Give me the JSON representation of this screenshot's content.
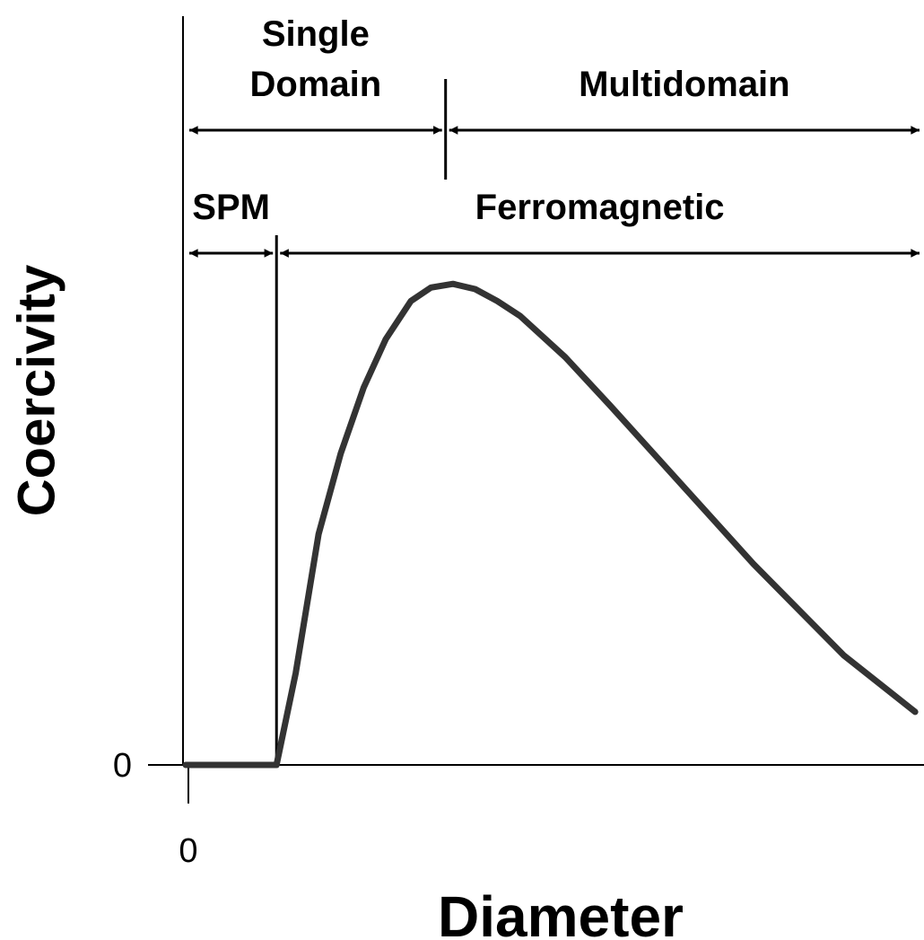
{
  "chart_data": {
    "type": "line",
    "x_label": "Diameter",
    "y_label": "Coercivity",
    "x": [
      0,
      12.3,
      14.9,
      18.0,
      21.0,
      24.1,
      27.1,
      30.5,
      33.2,
      36.2,
      39.2,
      42.2,
      45.3,
      51.4,
      57.5,
      67.2,
      76.9,
      89.1,
      98.8
    ],
    "series": [
      {
        "color": "#333333",
        "values": [
          0,
          0,
          12.3,
          30.9,
          41.7,
          50.5,
          57.0,
          62.1,
          63.9,
          64.4,
          63.7,
          62.1,
          60.1,
          54.6,
          48.1,
          37.5,
          26.9,
          14.7,
          7.1
        ]
      }
    ],
    "xlim": [
      0,
      100
    ],
    "ylim": [
      0,
      100
    ],
    "xticks": [
      0
    ],
    "yticks": [
      0
    ],
    "grid": false,
    "regions": [
      {
        "label_lines": [
          "Single",
          "Domain"
        ],
        "x_start": 0,
        "x_end": 35.2,
        "row": 1
      },
      {
        "label_lines": [
          "Multidomain"
        ],
        "x_start": 35.2,
        "x_end": 100,
        "row": 1
      },
      {
        "label_lines": [
          "SPM"
        ],
        "x_start": 0,
        "x_end": 12.3,
        "row": 2
      },
      {
        "label_lines": [
          "Ferromagnetic"
        ],
        "x_start": 12.3,
        "x_end": 100,
        "row": 2
      }
    ]
  }
}
